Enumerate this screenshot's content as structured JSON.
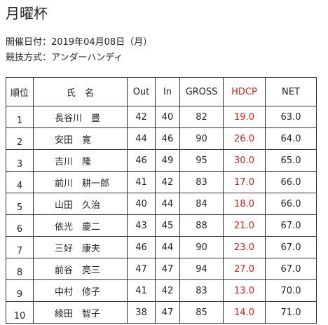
{
  "page": {
    "title": "月曜杯",
    "date_line": "開催日付：2019年04月08日（月）",
    "method_line": "競技方式：アンダーハンディ"
  },
  "table": {
    "headers": {
      "rank": "順位",
      "name": "氏　名",
      "out": "Out",
      "in": "In",
      "gross": "GROSS",
      "hdcp": "HDCP",
      "net": "NET"
    },
    "rows": [
      {
        "rank": "1",
        "name": "長谷川　豊",
        "out": "42",
        "in": "40",
        "gross": "82",
        "hdcp": "19.0",
        "net": "63.0"
      },
      {
        "rank": "2",
        "name": "安田　寛",
        "out": "44",
        "in": "46",
        "gross": "90",
        "hdcp": "26.0",
        "net": "64.0"
      },
      {
        "rank": "3",
        "name": "吉川　隆",
        "out": "46",
        "in": "49",
        "gross": "95",
        "hdcp": "30.0",
        "net": "65.0"
      },
      {
        "rank": "4",
        "name": "前川　耕一郎",
        "out": "41",
        "in": "42",
        "gross": "83",
        "hdcp": "17.0",
        "net": "66.0"
      },
      {
        "rank": "5",
        "name": "山田　久治",
        "out": "40",
        "in": "44",
        "gross": "84",
        "hdcp": "18.0",
        "net": "66.0"
      },
      {
        "rank": "6",
        "name": "依光　慶二",
        "out": "43",
        "in": "45",
        "gross": "88",
        "hdcp": "21.0",
        "net": "67.0"
      },
      {
        "rank": "7",
        "name": "三好　康夫",
        "out": "46",
        "in": "44",
        "gross": "90",
        "hdcp": "23.0",
        "net": "67.0"
      },
      {
        "rank": "8",
        "name": "前谷　亮三",
        "out": "47",
        "in": "47",
        "gross": "94",
        "hdcp": "27.0",
        "net": "67.0"
      },
      {
        "rank": "9",
        "name": "中村　修子",
        "out": "41",
        "in": "42",
        "gross": "83",
        "hdcp": "13.0",
        "net": "70.0"
      },
      {
        "rank": "10",
        "name": "綾田　智子",
        "out": "38",
        "in": "47",
        "gross": "85",
        "hdcp": "14.0",
        "net": "71.0"
      }
    ]
  },
  "colors": {
    "hdcp": "#cc2222",
    "border": "#333333",
    "text": "#222222"
  }
}
